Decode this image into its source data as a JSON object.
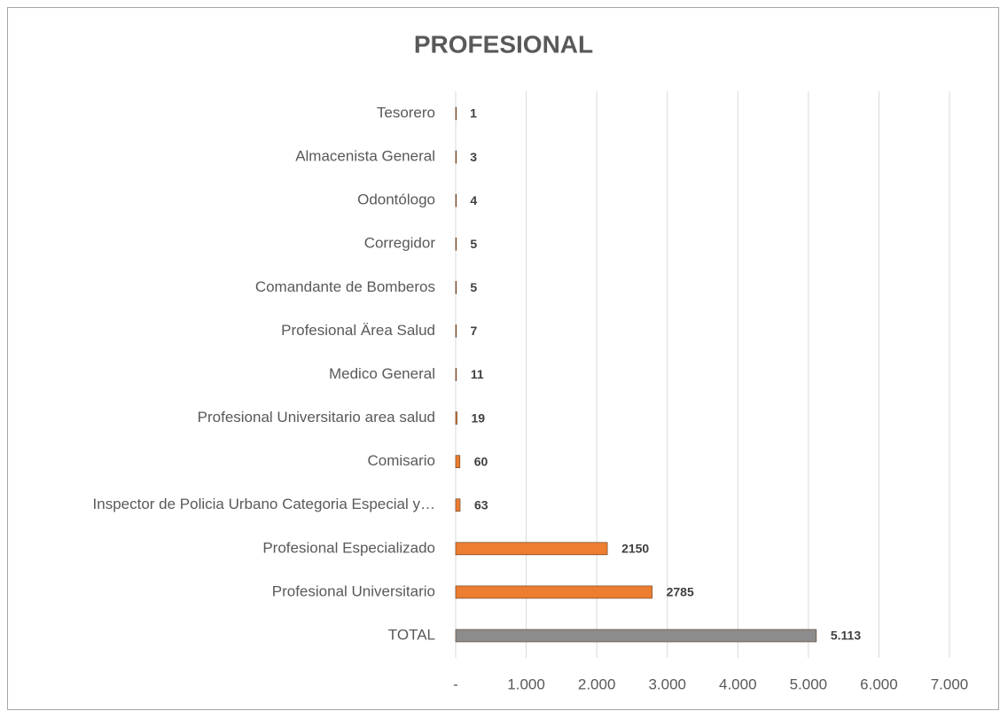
{
  "chart_data": {
    "type": "hbar",
    "title": "PROFESIONAL",
    "categories": [
      "Tesorero",
      "Almacenista General",
      "Odontólogo",
      "Corregidor",
      "Comandante de Bomberos",
      "Profesional Ärea Salud",
      "Medico General",
      "Profesional Universitario area salud",
      "Comisario",
      "Inspector de Policia Urbano Categoria Especial y…",
      "Profesional Especializado",
      "Profesional Universitario",
      "TOTAL"
    ],
    "values": [
      1,
      3,
      4,
      5,
      5,
      7,
      11,
      19,
      60,
      63,
      2150,
      2785,
      5113
    ],
    "value_labels": [
      "1",
      "3",
      "4",
      "5",
      "5",
      "7",
      "11",
      "19",
      "60",
      "63",
      "2150",
      "2785",
      "5.113"
    ],
    "colors": [
      "#ed7d31",
      "#ed7d31",
      "#ed7d31",
      "#ed7d31",
      "#ed7d31",
      "#ed7d31",
      "#ed7d31",
      "#ed7d31",
      "#ed7d31",
      "#ed7d31",
      "#ed7d31",
      "#ed7d31",
      "#8c8c8c"
    ],
    "xlim": [
      0,
      7000
    ],
    "xticks": [
      {
        "value": 0,
        "label": "-"
      },
      {
        "value": 1000,
        "label": "1.000"
      },
      {
        "value": 2000,
        "label": "2.000"
      },
      {
        "value": 3000,
        "label": "3.000"
      },
      {
        "value": 4000,
        "label": "4.000"
      },
      {
        "value": 5000,
        "label": "5.000"
      },
      {
        "value": 6000,
        "label": "6.000"
      },
      {
        "value": 7000,
        "label": "7.000"
      }
    ],
    "grid": true
  }
}
